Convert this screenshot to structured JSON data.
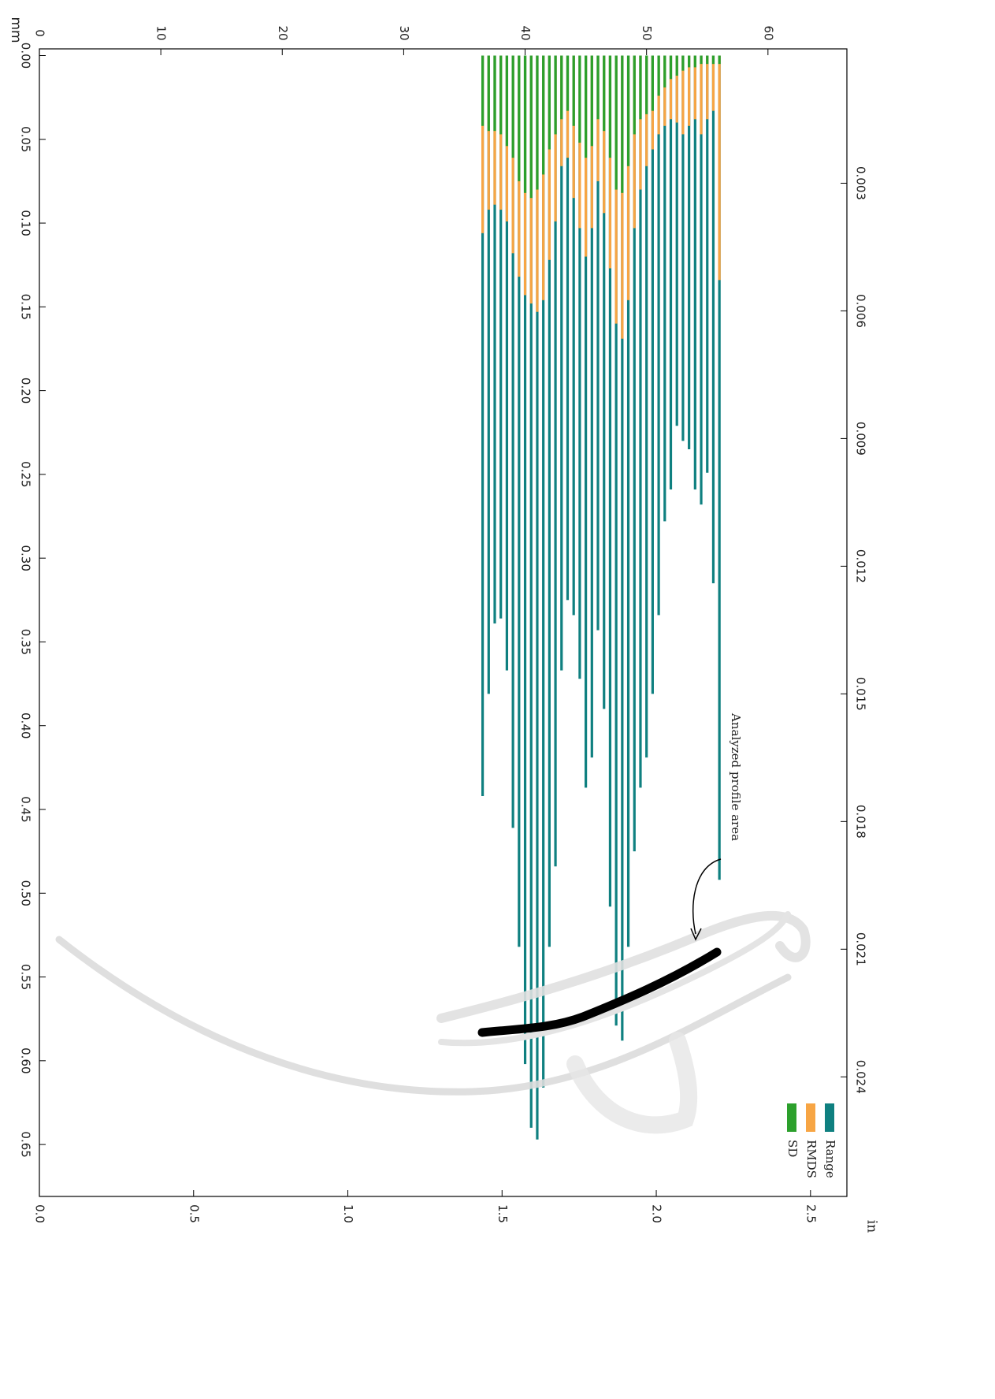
{
  "chart_data": {
    "type": "bar",
    "x_label": "mm",
    "y2_label": "in",
    "annotation": "Analyzed profile area",
    "x": [
      36.5,
      37,
      37.5,
      38,
      38.5,
      39,
      39.5,
      40,
      40.5,
      41,
      41.5,
      42,
      42.5,
      43,
      43.5,
      44,
      44.5,
      45,
      45.5,
      46,
      46.5,
      47,
      47.5,
      48,
      48.5,
      49,
      49.5,
      50,
      50.5,
      51,
      51.5,
      52,
      52.5,
      53,
      53.5,
      54,
      54.5,
      55,
      55.5,
      56
    ],
    "series": [
      {
        "name": "Range",
        "color": "#0f8080",
        "values": [
          0.442,
          0.381,
          0.339,
          0.336,
          0.367,
          0.461,
          0.532,
          0.602,
          0.64,
          0.647,
          0.616,
          0.532,
          0.484,
          0.367,
          0.325,
          0.334,
          0.372,
          0.437,
          0.419,
          0.343,
          0.39,
          0.508,
          0.579,
          0.588,
          0.532,
          0.475,
          0.437,
          0.419,
          0.381,
          0.334,
          0.278,
          0.259,
          0.221,
          0.23,
          0.235,
          0.259,
          0.268,
          0.249,
          0.315,
          0.492
        ]
      },
      {
        "name": "RMDS",
        "color": "#f7a544",
        "values": [
          0.106,
          0.092,
          0.089,
          0.092,
          0.099,
          0.118,
          0.132,
          0.143,
          0.148,
          0.153,
          0.146,
          0.122,
          0.099,
          0.066,
          0.061,
          0.085,
          0.103,
          0.12,
          0.103,
          0.075,
          0.094,
          0.127,
          0.16,
          0.169,
          0.146,
          0.103,
          0.08,
          0.066,
          0.056,
          0.047,
          0.042,
          0.038,
          0.04,
          0.047,
          0.042,
          0.038,
          0.047,
          0.038,
          0.033,
          0.134
        ]
      },
      {
        "name": "SD",
        "color": "#2ca02c",
        "values": [
          0.042,
          0.045,
          0.045,
          0.047,
          0.054,
          0.061,
          0.075,
          0.082,
          0.085,
          0.08,
          0.071,
          0.056,
          0.047,
          0.038,
          0.033,
          0.042,
          0.052,
          0.061,
          0.054,
          0.038,
          0.045,
          0.061,
          0.08,
          0.082,
          0.066,
          0.047,
          0.038,
          0.035,
          0.033,
          0.024,
          0.019,
          0.014,
          0.012,
          0.009,
          0.007,
          0.007,
          0.005,
          0.005,
          0.005,
          0.005
        ]
      }
    ],
    "xlim": [
      0,
      66.5
    ],
    "xticks": [
      0,
      10,
      20,
      30,
      40,
      50,
      60
    ],
    "x2lim": [
      0,
      2.618
    ],
    "x2ticks": [
      {
        "value": 0,
        "label": "0.0"
      },
      {
        "value": 0.5,
        "label": "0.5"
      },
      {
        "value": 1,
        "label": "1.0"
      },
      {
        "value": 1.5,
        "label": "1.5"
      },
      {
        "value": 2,
        "label": "2.0"
      },
      {
        "value": 2.5,
        "label": "2.5"
      }
    ],
    "ylim": [
      -0.004,
      0.681
    ],
    "yticks": [
      {
        "value": 0,
        "label": "0.00"
      },
      {
        "value": 0.05,
        "label": "0.05"
      },
      {
        "value": 0.1,
        "label": "0.10"
      },
      {
        "value": 0.15,
        "label": "0.15"
      },
      {
        "value": 0.2,
        "label": "0.20"
      },
      {
        "value": 0.25,
        "label": "0.25"
      },
      {
        "value": 0.3,
        "label": "0.30"
      },
      {
        "value": 0.35,
        "label": "0.35"
      },
      {
        "value": 0.4,
        "label": "0.40"
      },
      {
        "value": 0.45,
        "label": "0.45"
      },
      {
        "value": 0.5,
        "label": "0.50"
      },
      {
        "value": 0.55,
        "label": "0.55"
      },
      {
        "value": 0.6,
        "label": "0.60"
      },
      {
        "value": 0.65,
        "label": "0.65"
      }
    ],
    "y2lim": [
      -0.000157,
      0.02681
    ],
    "y2ticks": [
      0.003,
      0.006,
      0.009,
      0.012,
      0.015,
      0.018,
      0.021,
      0.024
    ],
    "legend": "bottom-right",
    "grid": false
  }
}
